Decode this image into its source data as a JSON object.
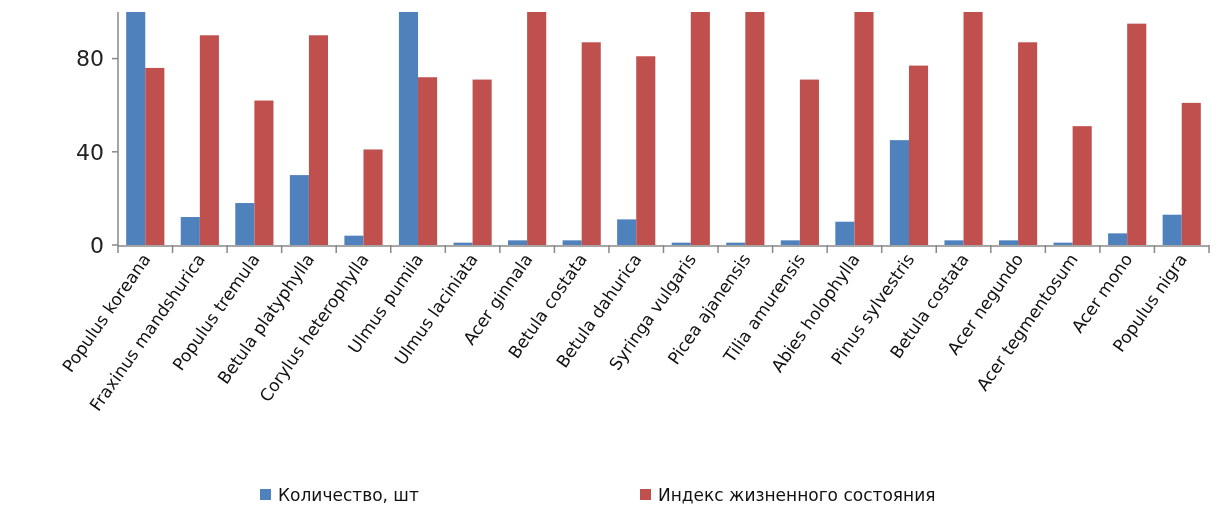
{
  "chart_data": {
    "type": "bar",
    "categories": [
      "Populus koreana",
      "Fraxinus mandshurica",
      "Populus tremula",
      "Betula platyphylla",
      "Corylus heterophylla",
      "Ulmus pumila",
      "Ulmus laciniata",
      "Acer ginnala",
      "Betula costata",
      "Betula dahurica",
      "Syringa vulgaris",
      "Picea ajanensis",
      "Tilia amurensis",
      "Abies holophylla",
      "Pinus sylvestris",
      "Betula costata",
      "Acer negundo",
      "Acer tegmentosum",
      "Acer mono",
      "Populus nigra"
    ],
    "series": [
      {
        "name": "Количество, шт",
        "color": "#4f81bd",
        "values": [
          100,
          12,
          18,
          30,
          4,
          100,
          1,
          2,
          2,
          11,
          1,
          1,
          2,
          10,
          45,
          2,
          2,
          1,
          5,
          13
        ]
      },
      {
        "name": "Индекс жизненного состояния",
        "color": "#c0504d",
        "values": [
          76,
          90,
          62,
          90,
          41,
          72,
          71,
          100,
          87,
          81,
          100,
          100,
          71,
          100,
          77,
          100,
          87,
          51,
          95,
          61
        ]
      }
    ],
    "ylim": [
      0,
      100
    ],
    "yticks": [
      {
        "value": 0,
        "label": "0"
      },
      {
        "value": 40,
        "label": "40"
      },
      {
        "value": 80,
        "label": "80"
      }
    ],
    "grid": false,
    "legend": "bottom"
  }
}
